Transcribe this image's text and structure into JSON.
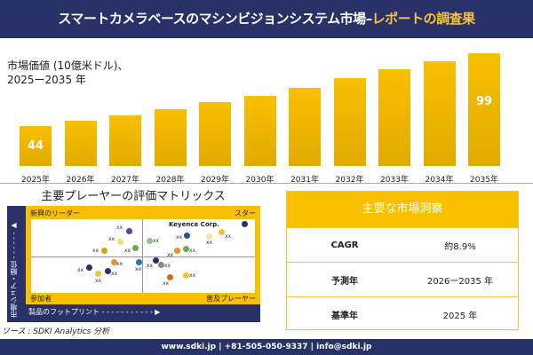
{
  "header": {
    "title": "スマートカメラベースのマシンビジョンシステム市場–",
    "title_accent": "レポートの調査果"
  },
  "market_value": {
    "line1": "市場価値 (10億米ドル)、",
    "line2": "2025ー2035 年"
  },
  "chart_data": {
    "type": "bar",
    "categories": [
      "2025年",
      "2026年",
      "2027年",
      "2028年",
      "2029年",
      "2030年",
      "2031年",
      "2032年",
      "2033年",
      "2034年",
      "2035年"
    ],
    "values": [
      44,
      48,
      52,
      57,
      62,
      67,
      73,
      80,
      87,
      93,
      99
    ],
    "data_labels": {
      "0": "44",
      "10": "99"
    },
    "color": "#f8c000"
  },
  "matrix": {
    "title": "主要プレーヤーの評価マトリックス",
    "q_tl": "新興のリーダー",
    "q_tr": "スター",
    "q_bl": "参加者",
    "q_br": "普及プレーヤー",
    "highlight": "Keyence Corp.",
    "y_axis": "市場シェア・順位 ‐ ‐ ‐ ‐ ‐ ‐ ▶",
    "x_axis": "製品のフットプリント - - - - - - - - - - - ▶",
    "point_label": "xx",
    "dots": [
      "#6a3d9a",
      "#f5dc7a",
      "#d4a017",
      "#6aa84f",
      "#93c47d",
      "#2f4f8f",
      "#f7e0a0",
      "#f1c232",
      "#283269",
      "#e69138",
      "#6aa84f",
      "#e69138",
      "#1f78b4",
      "#283269",
      "#283269",
      "#f1c232",
      "#283269",
      "#888888",
      "#d2691e",
      "#f1c232"
    ]
  },
  "source": "ソース : SDKI Analytics 分析",
  "insights": {
    "title": "主要な市場洞察",
    "rows": [
      {
        "label": "CAGR",
        "value": "約8.9%"
      },
      {
        "label": "予測年",
        "value": "2026ー2035 年"
      },
      {
        "label": "基準年",
        "value": "2025 年"
      }
    ]
  },
  "footer": "www.sdki.jp | +81-505-050-9337 | info@sdki.jp"
}
